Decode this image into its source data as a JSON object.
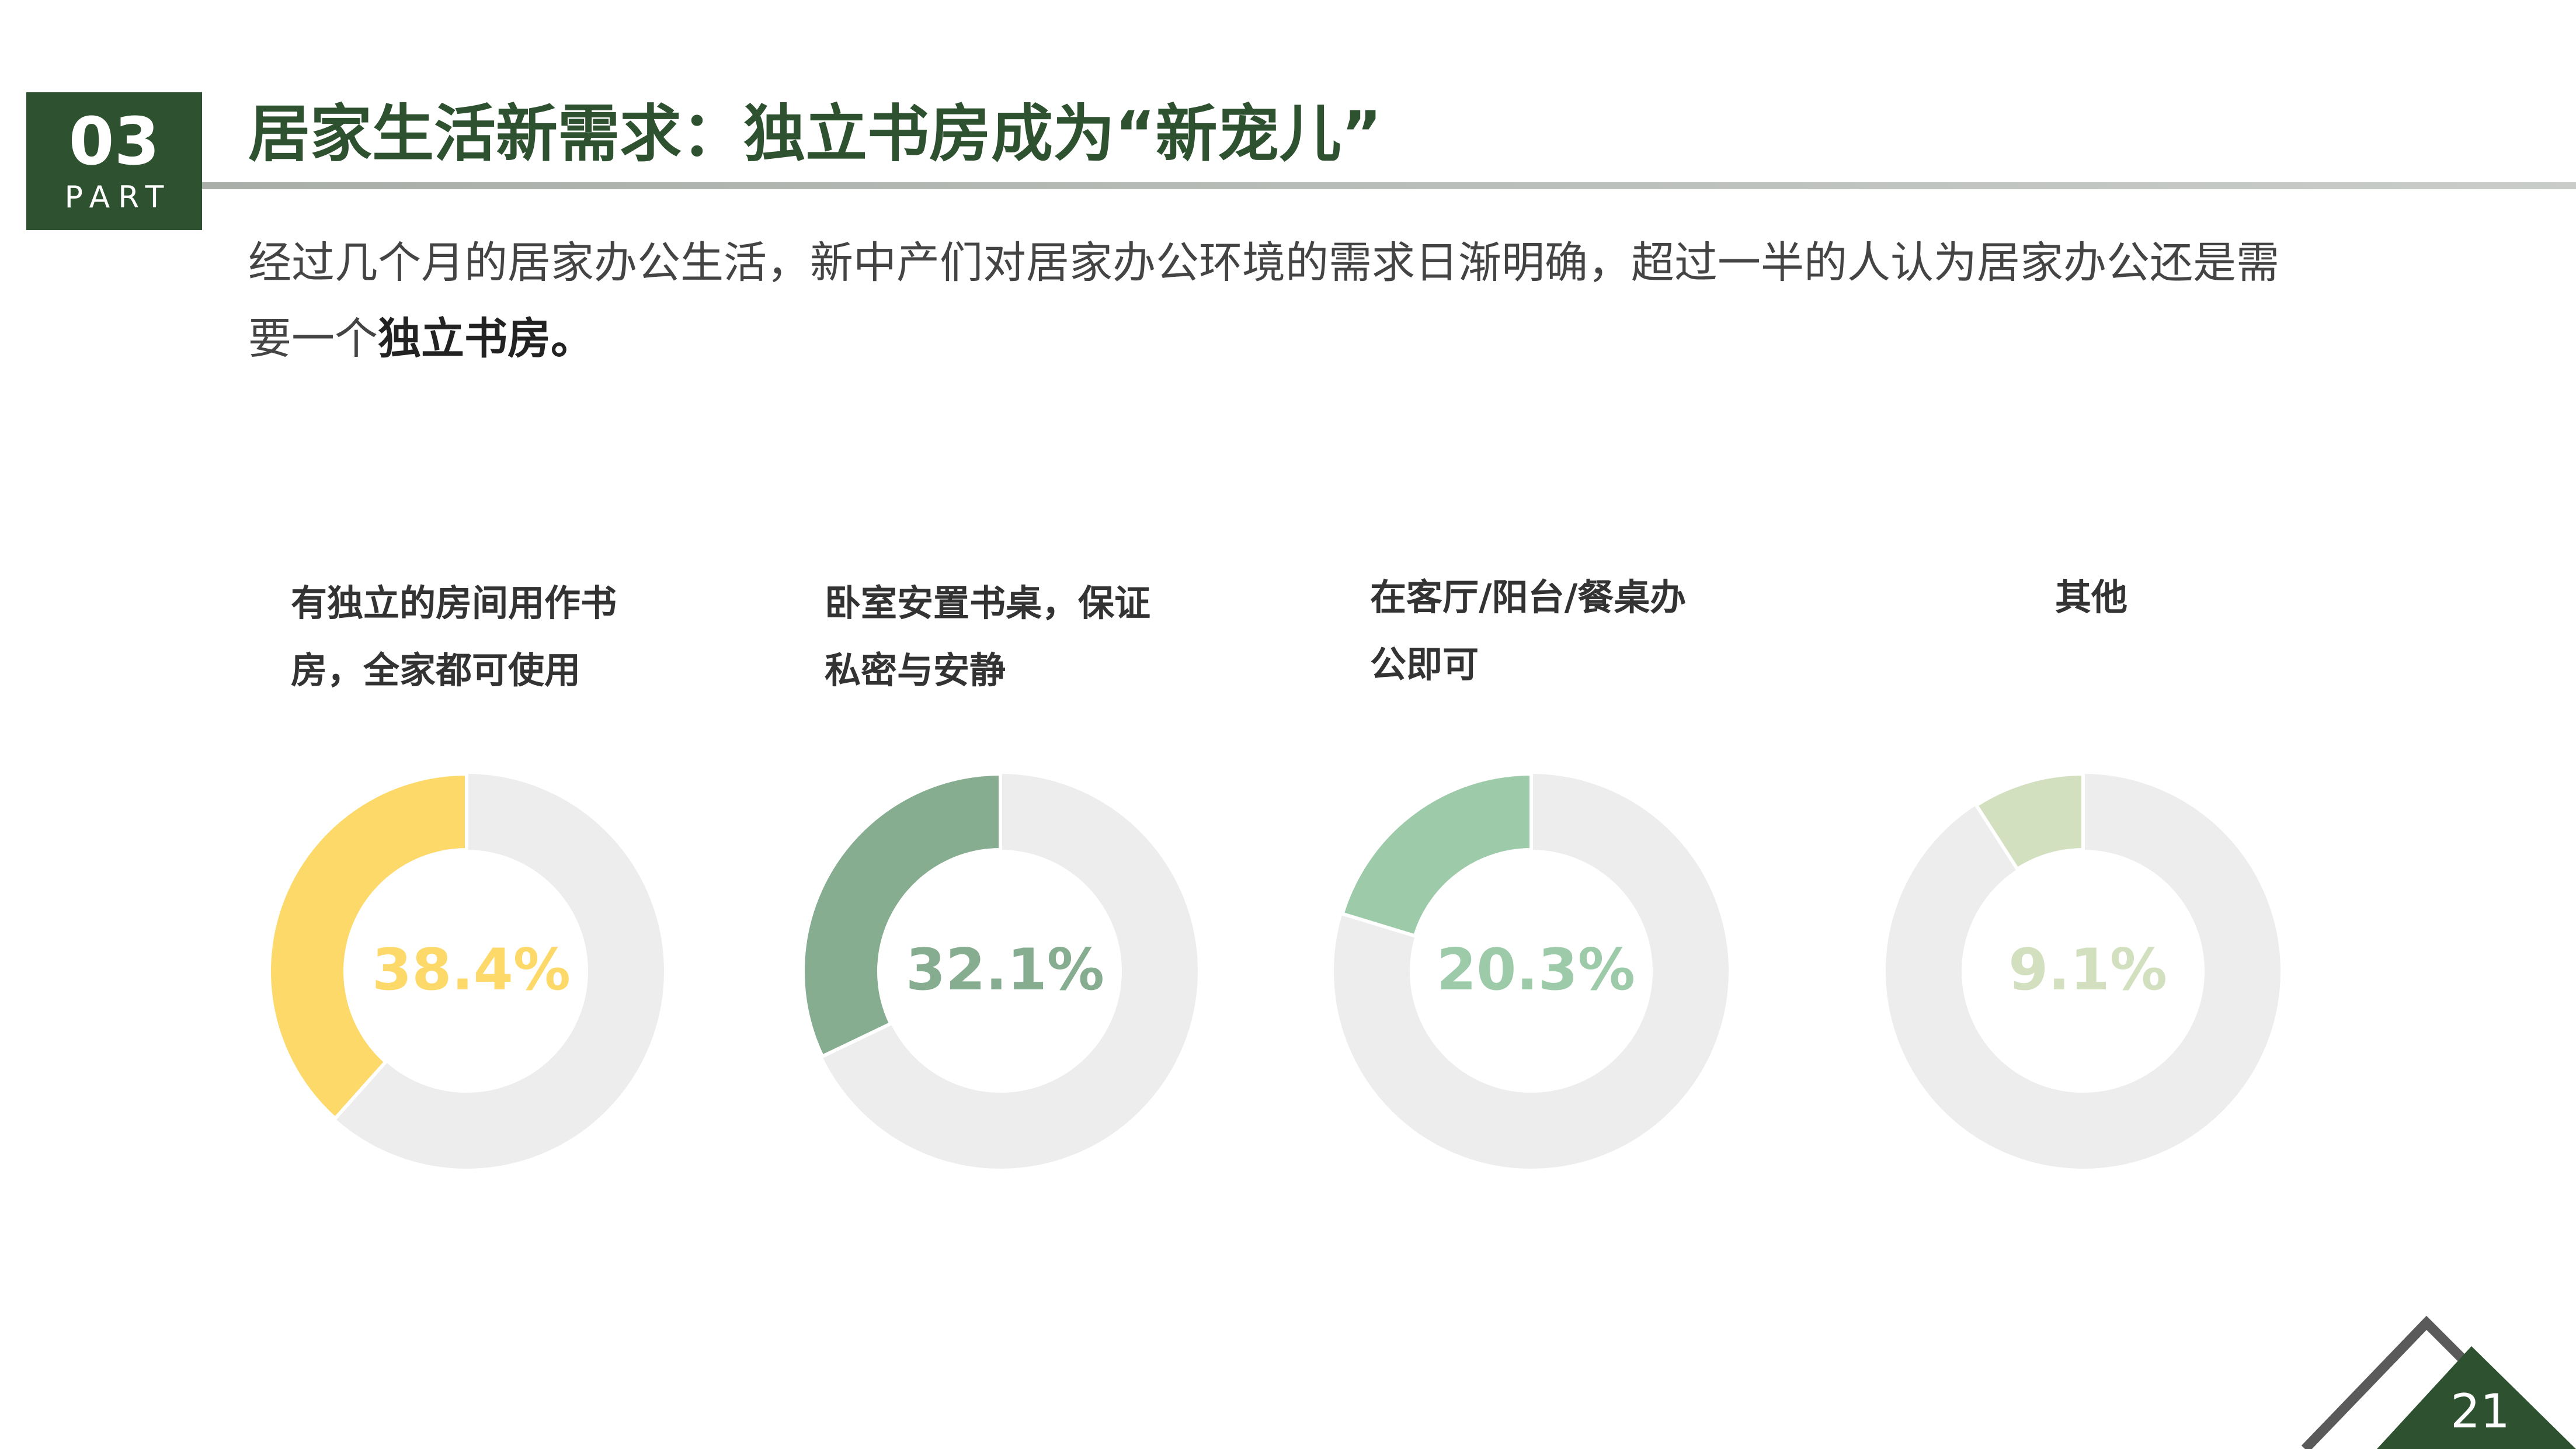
{
  "header": {
    "number": "03",
    "part": "PART",
    "title": "居家生活新需求：独立书房成为“新宠儿”"
  },
  "intro": {
    "line1": "经过几个月的居家办公生活，新中产们对居家办公环境的需求日渐明确，超过一半的人认为居家办公还是需",
    "line2": "要一个",
    "line2_bold": "独立书房。"
  },
  "chart_data": [
    {
      "type": "donut",
      "title": "有独立的房间用作书房，全家都可使用",
      "values": [
        38.4
      ],
      "value_labels": [
        "38.4%"
      ],
      "color": "#FDD96A",
      "track_color": "#EDEDED"
    },
    {
      "type": "donut",
      "title": "卧室安置书桌，保证私密与安静",
      "values": [
        32.1
      ],
      "value_labels": [
        "32.1%"
      ],
      "color": "#86AD8F",
      "track_color": "#EDEDED"
    },
    {
      "type": "donut",
      "title": "在客厅/阳台/餐桌办公即可",
      "values": [
        20.3
      ],
      "value_labels": [
        "20.3%"
      ],
      "color": "#9DCBA9",
      "track_color": "#EDEDED"
    },
    {
      "type": "donut",
      "title": "其他",
      "values": [
        9.1
      ],
      "value_labels": [
        "9.1%"
      ],
      "color": "#D3E0C0",
      "track_color": "#EDEDED"
    }
  ],
  "page_number": "21"
}
